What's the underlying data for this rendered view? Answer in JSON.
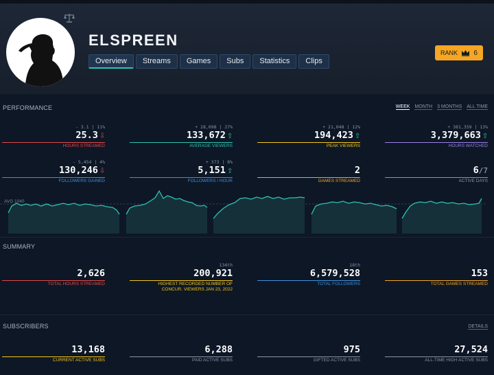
{
  "channel": {
    "name": "ELSPREEN"
  },
  "tabs": [
    "Overview",
    "Streams",
    "Games",
    "Subs",
    "Statistics",
    "Clips"
  ],
  "rank": {
    "label": "RANK",
    "value": "6"
  },
  "performance": {
    "title": "PERFORMANCE",
    "ranges": [
      "WEEK",
      "MONTH",
      "3 MONTHS",
      "ALL TIME"
    ],
    "stats": [
      {
        "sub": "- 3.1 | 11%",
        "value": "25.3",
        "trend": "down",
        "label": "HOURS STREAMED",
        "color": "#e24a4a"
      },
      {
        "sub": "+ 28,098 | 27%",
        "value": "133,672",
        "trend": "up",
        "label": "AVERAGE VIEWERS",
        "color": "#2ec4b0"
      },
      {
        "sub": "+ 21,048 | 12%",
        "value": "194,423",
        "trend": "up",
        "label": "PEAK VIEWERS",
        "color": "#f5c518"
      },
      {
        "sub": "+ 381,359 | 13%",
        "value": "3,379,663",
        "trend": "up",
        "label": "HOURS WATCHED",
        "color": "#9b7fe8"
      },
      {
        "sub": "- 5,454 | 4%",
        "value": "130,246",
        "trend": "down",
        "label": "FOLLOWERS GAINED",
        "color": "#3f8fe0"
      },
      {
        "sub": "+ 373 | 8%",
        "value": "5,151",
        "trend": "up",
        "label": "FOLLOWERS / HOUR",
        "color": "#3f8fe0"
      },
      {
        "sub": "",
        "value": "2",
        "trend": "",
        "label": "GAMES STREAMED",
        "color": "#f5a623"
      },
      {
        "sub": "",
        "value": "6",
        "denominator": "/7",
        "trend": "",
        "label": "ACTIVE DAYS",
        "color": "#8a95a6"
      }
    ],
    "chart": {
      "avg_label": "AVG 1040"
    }
  },
  "summary": {
    "title": "SUMMARY",
    "stats": [
      {
        "sub": "",
        "value": "2,626",
        "label": "TOTAL HOURS STREAMED",
        "color": "#e24a4a"
      },
      {
        "sub": "134th",
        "value": "200,921",
        "label": "HIGHEST RECORDED NUMBER OF CONCUR. VIEWERS JAN 23, 2022",
        "color": "#f5c518"
      },
      {
        "sub": "18th",
        "value": "6,579,528",
        "label": "TOTAL FOLLOWERS",
        "color": "#3f8fe0"
      },
      {
        "sub": "",
        "value": "153",
        "label": "TOTAL GAMES STREAMED",
        "color": "#f5a623"
      }
    ]
  },
  "subscribers": {
    "title": "SUBSCRIBERS",
    "details_label": "DETAILS",
    "stats": [
      {
        "value": "13,168",
        "label": "CURRENT ACTIVE SUBS",
        "color": "#f5c518"
      },
      {
        "value": "6,288",
        "label": "PAID ACTIVE SUBS",
        "color": "#8a95a6"
      },
      {
        "value": "975",
        "label": "GIFTED ACTIVE SUBS",
        "color": "#8a95a6"
      },
      {
        "value": "27,524",
        "label": "ALL-TIME HIGH ACTIVE SUBS",
        "color": "#8a95a6"
      }
    ]
  },
  "colors": {
    "accent": "#2ec4b0",
    "rank": "#f5a623",
    "background": "#0d1726"
  },
  "icons": [
    "scale-icon",
    "crown-icon",
    "arrow-up-icon",
    "arrow-down-icon"
  ]
}
